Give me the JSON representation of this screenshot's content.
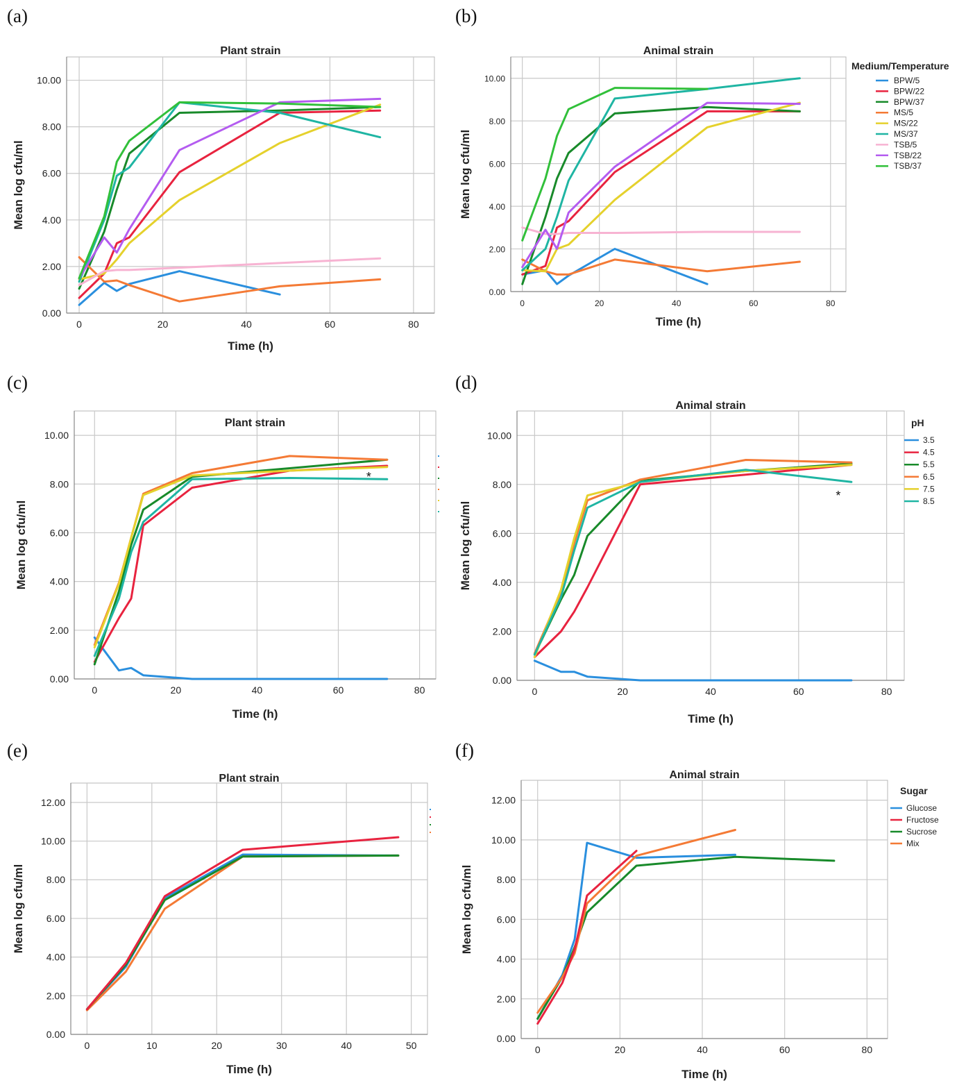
{
  "panel_labels": [
    "(a)",
    "(b)",
    "(c)",
    "(d)",
    "(e)",
    "(f)"
  ],
  "chart_data": [
    {
      "id": "a",
      "type": "line",
      "title": "Plant strain",
      "xlabel": "Time (h)",
      "ylabel": "Mean log cfu/ml",
      "xlim": [
        -3,
        85
      ],
      "ylim": [
        0,
        11
      ],
      "xticks": [
        0,
        20,
        40,
        60,
        80
      ],
      "yticks": [
        0,
        2,
        4,
        6,
        8,
        10
      ],
      "ytick_labels": [
        "0.00",
        "2.00",
        "4.00",
        "6.00",
        "8.00",
        "10.00"
      ],
      "series": [
        {
          "name": "BPW/5",
          "color": "#2a8fde",
          "x": [
            0,
            6,
            9,
            12,
            24,
            48
          ],
          "y": [
            0.35,
            1.3,
            0.95,
            1.25,
            1.8,
            0.8
          ]
        },
        {
          "name": "BPW/22",
          "color": "#e8233f",
          "x": [
            0,
            6,
            9,
            12,
            24,
            48,
            72
          ],
          "y": [
            0.65,
            1.7,
            3.0,
            3.25,
            6.05,
            8.6,
            8.7
          ]
        },
        {
          "name": "BPW/37",
          "color": "#188a2a",
          "x": [
            0,
            6,
            9,
            12,
            24,
            48,
            72
          ],
          "y": [
            1.05,
            3.5,
            5.3,
            6.85,
            8.6,
            8.7,
            8.85
          ]
        },
        {
          "name": "MS/5",
          "color": "#f47a35",
          "x": [
            0,
            6,
            9,
            12,
            24,
            48,
            72
          ],
          "y": [
            2.4,
            1.35,
            1.4,
            1.2,
            0.5,
            1.15,
            1.45
          ]
        },
        {
          "name": "MS/22",
          "color": "#e5d12c",
          "x": [
            0,
            6,
            9,
            12,
            24,
            48,
            72
          ],
          "y": [
            1.45,
            1.7,
            2.3,
            3.0,
            4.85,
            7.3,
            8.95
          ]
        },
        {
          "name": "MS/37",
          "color": "#1fb5a3",
          "x": [
            0,
            6,
            9,
            12,
            24,
            48,
            72
          ],
          "y": [
            1.35,
            4.0,
            5.9,
            6.25,
            9.05,
            8.6,
            7.55
          ]
        },
        {
          "name": "TSB/5",
          "color": "#f7b3d2",
          "x": [
            0,
            6,
            9,
            12,
            24,
            48,
            72
          ],
          "y": [
            1.2,
            1.8,
            1.85,
            1.85,
            1.95,
            2.15,
            2.35
          ]
        },
        {
          "name": "TSB/22",
          "color": "#b45cf0",
          "x": [
            0,
            6,
            9,
            12,
            24,
            48,
            72
          ],
          "y": [
            1.5,
            3.25,
            2.6,
            3.6,
            7.0,
            9.05,
            9.2
          ]
        },
        {
          "name": "TSB/37",
          "color": "#31c03a",
          "x": [
            0,
            6,
            9,
            12,
            24,
            48,
            72
          ],
          "y": [
            1.5,
            4.15,
            6.5,
            7.4,
            9.05,
            9.0,
            8.85
          ]
        }
      ]
    },
    {
      "id": "b",
      "type": "line",
      "title": "Animal strain",
      "xlabel": "Time (h)",
      "ylabel": "Mean log cfu/ml",
      "xlim": [
        -3,
        84
      ],
      "ylim": [
        0,
        11
      ],
      "xticks": [
        0,
        20,
        40,
        60,
        80
      ],
      "yticks": [
        0,
        2,
        4,
        6,
        8,
        10
      ],
      "ytick_labels": [
        "0.00",
        "2.00",
        "4.00",
        "6.00",
        "8.00",
        "10.00"
      ],
      "legend": {
        "title": "Medium/Temperature",
        "entries": [
          "BPW/5",
          "BPW/22",
          "BPW/37",
          "MS/5",
          "MS/22",
          "MS/37",
          "TSB/5",
          "TSB/22",
          "TSB/37"
        ]
      },
      "series": [
        {
          "name": "BPW/5",
          "color": "#2a8fde",
          "x": [
            0,
            6,
            9,
            12,
            24,
            48
          ],
          "y": [
            0.8,
            1.0,
            0.35,
            0.75,
            2.0,
            0.35
          ]
        },
        {
          "name": "BPW/22",
          "color": "#e8233f",
          "x": [
            0,
            6,
            9,
            12,
            24,
            48,
            72
          ],
          "y": [
            0.8,
            1.2,
            3.0,
            3.3,
            5.6,
            8.45,
            8.45
          ]
        },
        {
          "name": "BPW/37",
          "color": "#188a2a",
          "x": [
            0,
            6,
            9,
            12,
            24,
            48,
            72
          ],
          "y": [
            0.35,
            3.5,
            5.3,
            6.5,
            8.35,
            8.65,
            8.45
          ]
        },
        {
          "name": "MS/5",
          "color": "#f47a35",
          "x": [
            0,
            6,
            9,
            12,
            24,
            48,
            72
          ],
          "y": [
            1.5,
            0.95,
            0.8,
            0.8,
            1.5,
            0.95,
            1.4
          ]
        },
        {
          "name": "MS/22",
          "color": "#e5d12c",
          "x": [
            0,
            6,
            9,
            12,
            24,
            48,
            72
          ],
          "y": [
            1.0,
            0.95,
            2.0,
            2.2,
            4.3,
            7.7,
            8.85
          ]
        },
        {
          "name": "MS/37",
          "color": "#1fb5a3",
          "x": [
            0,
            6,
            9,
            12,
            24,
            48,
            72
          ],
          "y": [
            1.0,
            2.0,
            3.5,
            5.2,
            9.05,
            9.5,
            10.0
          ]
        },
        {
          "name": "TSB/5",
          "color": "#f7b3d2",
          "x": [
            0,
            6,
            9,
            12,
            24,
            48,
            72
          ],
          "y": [
            3.0,
            2.7,
            2.7,
            2.75,
            2.75,
            2.8,
            2.8
          ]
        },
        {
          "name": "TSB/22",
          "color": "#b45cf0",
          "x": [
            0,
            6,
            9,
            12,
            24,
            48,
            72
          ],
          "y": [
            1.15,
            2.9,
            2.0,
            3.7,
            5.85,
            8.85,
            8.8
          ]
        },
        {
          "name": "TSB/37",
          "color": "#31c03a",
          "x": [
            0,
            6,
            9,
            12,
            24,
            48
          ],
          "y": [
            2.4,
            5.3,
            7.3,
            8.55,
            9.55,
            9.5
          ]
        }
      ]
    },
    {
      "id": "c",
      "type": "line",
      "title": "Plant strain",
      "xlabel": "Time (h)",
      "ylabel": "Mean log cfu/ml",
      "xlim": [
        -5,
        84
      ],
      "ylim": [
        0,
        11
      ],
      "xticks": [
        0,
        20,
        40,
        60,
        80
      ],
      "yticks": [
        0,
        2,
        4,
        6,
        8,
        10
      ],
      "ytick_labels": [
        "0.00",
        "2.00",
        "4.00",
        "6.00",
        "8.00",
        "10.00"
      ],
      "annotation": "*",
      "series": [
        {
          "name": "3.5",
          "color": "#2a8fde",
          "x": [
            0,
            6,
            9,
            12,
            20,
            24,
            48,
            72
          ],
          "y": [
            1.7,
            0.35,
            0.45,
            0.15,
            0.05,
            0.0,
            0.0,
            0.0
          ]
        },
        {
          "name": "4.5",
          "color": "#e8233f",
          "x": [
            0,
            6,
            9,
            12,
            24,
            48,
            72
          ],
          "y": [
            0.7,
            2.5,
            3.3,
            6.3,
            7.85,
            8.55,
            8.75
          ]
        },
        {
          "name": "5.5",
          "color": "#188a2a",
          "x": [
            0,
            6,
            9,
            12,
            24,
            48,
            72
          ],
          "y": [
            0.6,
            3.6,
            5.5,
            6.95,
            8.3,
            8.65,
            9.0
          ]
        },
        {
          "name": "6.5",
          "color": "#f47a35",
          "x": [
            0,
            6,
            9,
            12,
            24,
            48,
            72
          ],
          "y": [
            1.4,
            3.95,
            5.8,
            7.6,
            8.45,
            9.15,
            9.0
          ]
        },
        {
          "name": "7.5",
          "color": "#e5d12c",
          "x": [
            0,
            6,
            9,
            12,
            24,
            48,
            72
          ],
          "y": [
            1.3,
            3.9,
            5.8,
            7.55,
            8.35,
            8.55,
            8.7
          ]
        },
        {
          "name": "8.5",
          "color": "#1fb5a3",
          "x": [
            0,
            6,
            9,
            12,
            24,
            48,
            72
          ],
          "y": [
            0.95,
            3.3,
            5.2,
            6.45,
            8.2,
            8.25,
            8.2
          ]
        }
      ]
    },
    {
      "id": "d",
      "type": "line",
      "title": "Animal strain",
      "xlabel": "Time (h)",
      "ylabel": "Mean log cfu/ml",
      "xlim": [
        -4,
        84
      ],
      "ylim": [
        0,
        11
      ],
      "xticks": [
        0,
        20,
        40,
        60,
        80
      ],
      "yticks": [
        0,
        2,
        4,
        6,
        8,
        10
      ],
      "ytick_labels": [
        "0.00",
        "2.00",
        "4.00",
        "6.00",
        "8.00",
        "10.00"
      ],
      "legend": {
        "title": "pH",
        "entries": [
          "3.5",
          "4.5",
          "5.5",
          "6.5",
          "7.5",
          "8.5"
        ]
      },
      "annotation": "*",
      "series": [
        {
          "name": "3.5",
          "color": "#2a8fde",
          "x": [
            0,
            6,
            9,
            12,
            20,
            24,
            48,
            72
          ],
          "y": [
            0.8,
            0.35,
            0.35,
            0.15,
            0.05,
            0.0,
            0.0,
            0.0
          ]
        },
        {
          "name": "4.5",
          "color": "#e8233f",
          "x": [
            0,
            6,
            9,
            12,
            24,
            48,
            72
          ],
          "y": [
            0.95,
            2.0,
            2.8,
            3.8,
            8.0,
            8.4,
            8.8
          ]
        },
        {
          "name": "5.5",
          "color": "#188a2a",
          "x": [
            0,
            6,
            9,
            12,
            24,
            48,
            72
          ],
          "y": [
            1.05,
            3.3,
            4.3,
            5.9,
            8.15,
            8.55,
            8.85
          ]
        },
        {
          "name": "6.5",
          "color": "#f47a35",
          "x": [
            0,
            6,
            9,
            12,
            24,
            48,
            72
          ],
          "y": [
            1.1,
            3.6,
            5.6,
            7.35,
            8.2,
            9.0,
            8.9
          ]
        },
        {
          "name": "7.5",
          "color": "#e5d12c",
          "x": [
            0,
            6,
            9,
            12,
            24,
            48,
            72
          ],
          "y": [
            0.95,
            3.7,
            5.8,
            7.55,
            8.1,
            8.55,
            8.8
          ]
        },
        {
          "name": "8.5",
          "color": "#1fb5a3",
          "x": [
            0,
            6,
            9,
            12,
            24,
            48,
            72
          ],
          "y": [
            1.05,
            3.4,
            5.3,
            7.05,
            8.1,
            8.6,
            8.1
          ]
        }
      ]
    },
    {
      "id": "e",
      "type": "line",
      "title": "Plant strain",
      "xlabel": "Time (h)",
      "ylabel": "Mean log cfu/ml",
      "xlim": [
        -2.5,
        52.5
      ],
      "ylim": [
        0,
        13
      ],
      "xticks": [
        0,
        10,
        20,
        30,
        40,
        50
      ],
      "yticks": [
        0,
        2,
        4,
        6,
        8,
        10,
        12
      ],
      "ytick_labels": [
        "0.00",
        "2.00",
        "4.00",
        "6.00",
        "8.00",
        "10.00",
        "12.00"
      ],
      "series": [
        {
          "name": "Glucose",
          "color": "#2a8fde",
          "x": [
            0,
            6,
            12,
            24,
            48
          ],
          "y": [
            1.3,
            3.5,
            7.05,
            9.3,
            9.25
          ]
        },
        {
          "name": "Mix",
          "color": "#f47a35",
          "x": [
            0,
            6,
            12,
            24,
            48
          ],
          "y": [
            1.25,
            3.25,
            6.5,
            9.2,
            9.25
          ]
        },
        {
          "name": "Sucrose",
          "color": "#188a2a",
          "x": [
            0,
            6,
            12,
            24,
            48
          ],
          "y": [
            1.3,
            3.6,
            6.95,
            9.2,
            9.25
          ]
        },
        {
          "name": "Fructose",
          "color": "#e8233f",
          "x": [
            0,
            6,
            12,
            24,
            48
          ],
          "y": [
            1.3,
            3.7,
            7.15,
            9.55,
            10.2
          ]
        }
      ]
    },
    {
      "id": "f",
      "type": "line",
      "title": "Animal strain",
      "xlabel": "Time (h)",
      "ylabel": "Mean log cfu/ml",
      "xlim": [
        -4,
        85
      ],
      "ylim": [
        0,
        13
      ],
      "xticks": [
        0,
        20,
        40,
        60,
        80
      ],
      "yticks": [
        0,
        2,
        4,
        6,
        8,
        10,
        12
      ],
      "ytick_labels": [
        "0.00",
        "2.00",
        "4.00",
        "6.00",
        "8.00",
        "10.00",
        "12.00"
      ],
      "legend": {
        "title": "Sugar",
        "entries": [
          "Glucose",
          "Fructose",
          "Sucrose",
          "Mix"
        ]
      },
      "series": [
        {
          "name": "Glucose",
          "color": "#2a8fde",
          "x": [
            0,
            6,
            9,
            12,
            24,
            48
          ],
          "y": [
            1.0,
            3.2,
            5.0,
            9.85,
            9.1,
            9.25
          ]
        },
        {
          "name": "Sucrose",
          "color": "#188a2a",
          "x": [
            0,
            6,
            9,
            12,
            24,
            48,
            72
          ],
          "y": [
            1.0,
            3.1,
            4.6,
            6.35,
            8.7,
            9.15,
            8.95
          ]
        },
        {
          "name": "Mix",
          "color": "#f47a35",
          "x": [
            0,
            6,
            9,
            12,
            24,
            48
          ],
          "y": [
            1.3,
            3.1,
            4.3,
            6.8,
            9.2,
            10.5
          ]
        },
        {
          "name": "Fructose",
          "color": "#e8233f",
          "x": [
            0,
            6,
            9,
            12,
            24
          ],
          "y": [
            0.75,
            2.8,
            4.5,
            7.2,
            9.45
          ]
        }
      ]
    }
  ]
}
